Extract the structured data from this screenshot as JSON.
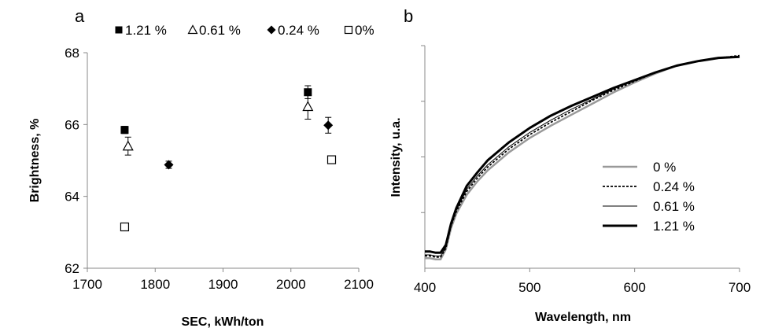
{
  "chart_data": [
    {
      "panel": "a",
      "type": "scatter",
      "xlabel": "SEC, kWh/ton",
      "ylabel": "Brightness, %",
      "xlim": [
        1700,
        2100
      ],
      "ylim": [
        62,
        68
      ],
      "xticks": [
        1700,
        1800,
        1900,
        2000,
        2100
      ],
      "yticks": [
        62,
        64,
        66,
        68
      ],
      "grid": false,
      "legend_position": "top",
      "series": [
        {
          "name": "1.21 %",
          "marker": "filled-square",
          "points": [
            {
              "x": 1755,
              "y": 65.85,
              "err": 0.1
            },
            {
              "x": 2025,
              "y": 66.9,
              "err": 0.18
            }
          ]
        },
        {
          "name": "0.61 %",
          "marker": "open-triangle",
          "points": [
            {
              "x": 1760,
              "y": 65.4,
              "err": 0.25
            },
            {
              "x": 2025,
              "y": 66.5,
              "err": 0.35
            }
          ]
        },
        {
          "name": "0.24 %",
          "marker": "filled-diamond",
          "points": [
            {
              "x": 1820,
              "y": 64.88,
              "err": 0.1
            },
            {
              "x": 2055,
              "y": 65.98,
              "err": 0.22
            }
          ]
        },
        {
          "name": "0%",
          "marker": "open-square",
          "points": [
            {
              "x": 1755,
              "y": 63.15,
              "err": 0.1
            },
            {
              "x": 2060,
              "y": 65.02,
              "err": 0.1
            }
          ]
        }
      ]
    },
    {
      "panel": "b",
      "type": "line",
      "xlabel": "Wavelength, nm",
      "ylabel": "Intensity, u.a.",
      "xlim": [
        400,
        700
      ],
      "ylim": [
        0,
        1
      ],
      "xticks": [
        400,
        500,
        600,
        700
      ],
      "ytick_count": 4,
      "grid": false,
      "legend_position": "right",
      "series": [
        {
          "name": "0 %",
          "style": "gray-solid",
          "x": [
            400,
            405,
            410,
            415,
            420,
            425,
            430,
            440,
            450,
            460,
            480,
            500,
            520,
            540,
            560,
            580,
            600,
            620,
            640,
            660,
            680,
            700
          ],
          "y": [
            0.045,
            0.045,
            0.04,
            0.04,
            0.085,
            0.18,
            0.245,
            0.33,
            0.39,
            0.44,
            0.52,
            0.585,
            0.64,
            0.69,
            0.74,
            0.79,
            0.835,
            0.875,
            0.91,
            0.93,
            0.945,
            0.95
          ]
        },
        {
          "name": "0.24 %",
          "style": "black-dotted",
          "x": [
            400,
            405,
            410,
            415,
            420,
            425,
            430,
            440,
            450,
            460,
            480,
            500,
            520,
            540,
            560,
            580,
            600,
            620,
            640,
            660,
            680,
            700
          ],
          "y": [
            0.055,
            0.055,
            0.05,
            0.05,
            0.09,
            0.19,
            0.255,
            0.345,
            0.405,
            0.455,
            0.535,
            0.6,
            0.655,
            0.705,
            0.755,
            0.8,
            0.84,
            0.88,
            0.91,
            0.93,
            0.945,
            0.955
          ]
        },
        {
          "name": "0.61 %",
          "style": "black-thin",
          "x": [
            400,
            405,
            410,
            415,
            420,
            425,
            430,
            440,
            450,
            460,
            480,
            500,
            520,
            540,
            560,
            580,
            600,
            620,
            640,
            660,
            680,
            700
          ],
          "y": [
            0.06,
            0.06,
            0.055,
            0.055,
            0.095,
            0.195,
            0.26,
            0.355,
            0.415,
            0.465,
            0.545,
            0.61,
            0.665,
            0.715,
            0.76,
            0.805,
            0.845,
            0.88,
            0.91,
            0.93,
            0.945,
            0.95
          ]
        },
        {
          "name": "1.21 %",
          "style": "black-thick",
          "x": [
            400,
            405,
            410,
            415,
            420,
            425,
            430,
            440,
            450,
            460,
            480,
            500,
            520,
            540,
            560,
            580,
            600,
            620,
            640,
            660,
            680,
            700
          ],
          "y": [
            0.075,
            0.075,
            0.07,
            0.07,
            0.105,
            0.2,
            0.27,
            0.37,
            0.43,
            0.485,
            0.565,
            0.63,
            0.685,
            0.73,
            0.77,
            0.81,
            0.845,
            0.88,
            0.91,
            0.93,
            0.945,
            0.95
          ]
        }
      ]
    }
  ]
}
